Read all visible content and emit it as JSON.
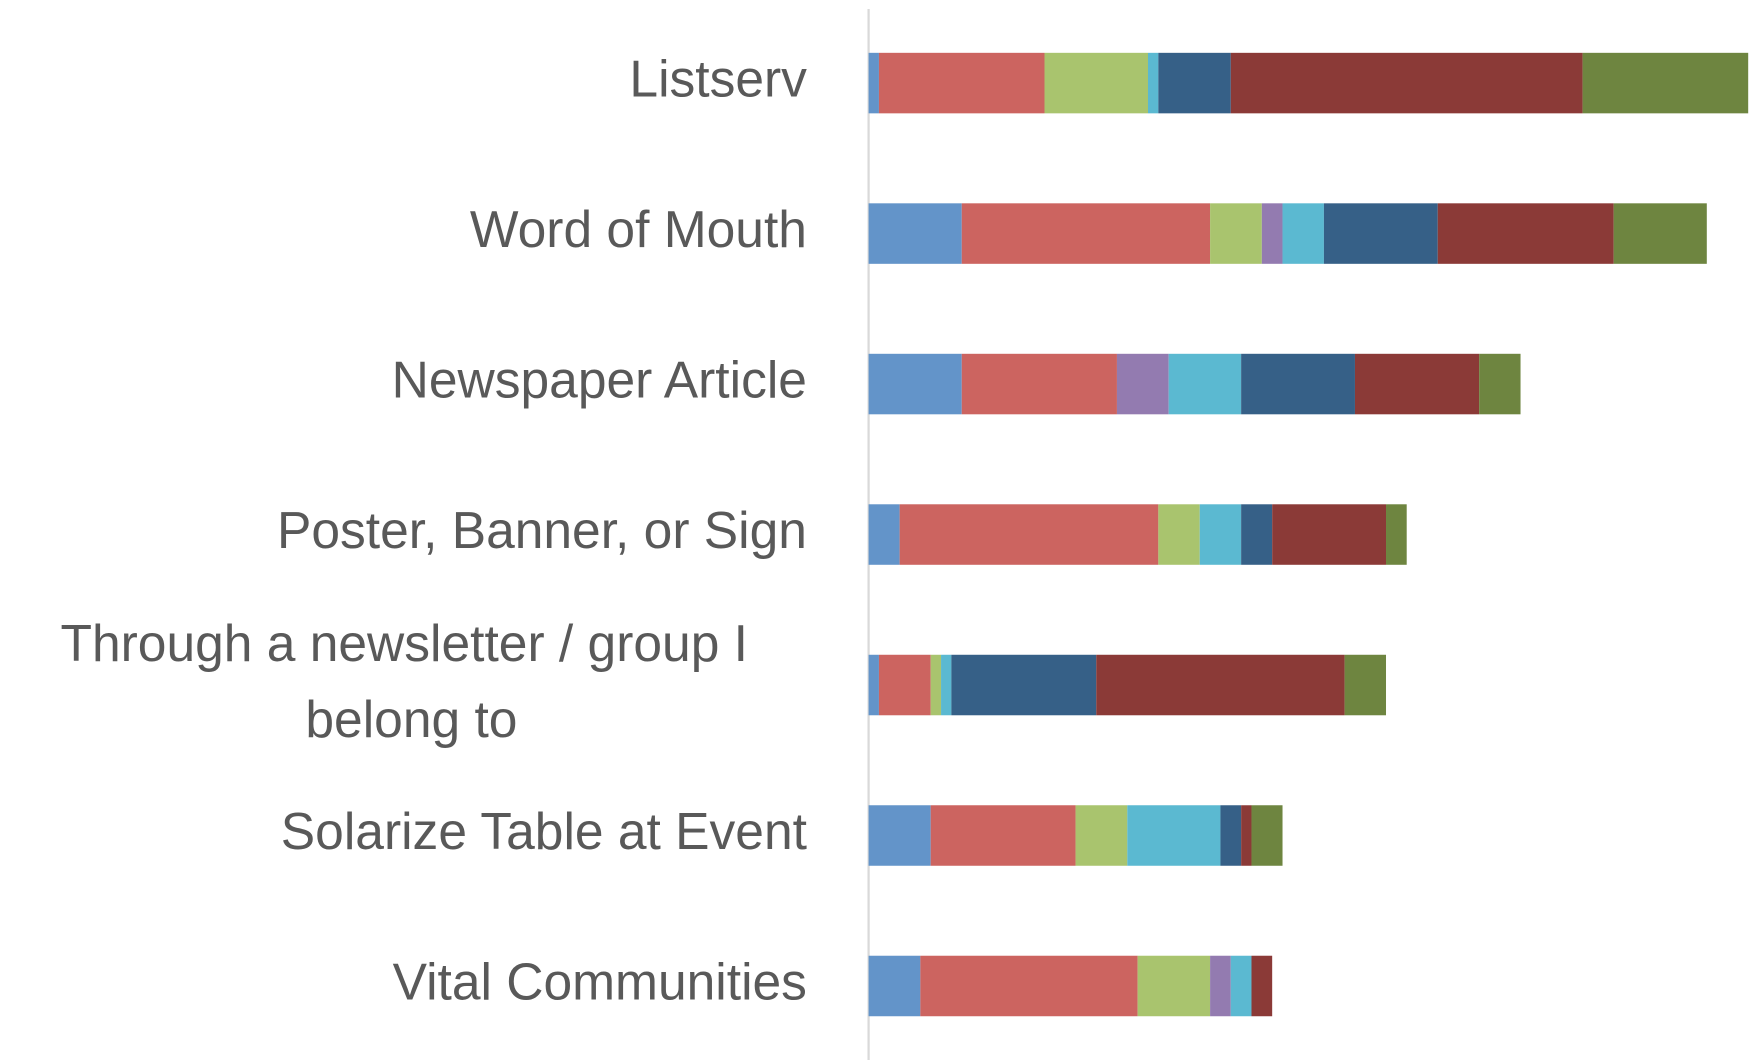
{
  "chart_data": {
    "type": "stacked-bar-horizontal",
    "categories": [
      "Listserv",
      "Word of Mouth",
      "Newspaper Article",
      "Poster, Banner, or Sign",
      "Through a newsletter / group I belong to",
      "Solarize Table at Event",
      "Vital Communities"
    ],
    "series": [
      {
        "color": "#6394c9",
        "values": [
          1,
          9,
          9,
          3,
          1,
          6,
          5
        ]
      },
      {
        "color": "#cc6460",
        "values": [
          16,
          24,
          15,
          25,
          5,
          14,
          21
        ]
      },
      {
        "color": "#a9c46e",
        "values": [
          10,
          5,
          0,
          4,
          1,
          5,
          7
        ]
      },
      {
        "color": "#937bb0",
        "values": [
          0,
          2,
          5,
          0,
          0,
          0,
          2
        ]
      },
      {
        "color": "#5bb9d1",
        "values": [
          1,
          4,
          7,
          4,
          1,
          9,
          2
        ]
      },
      {
        "color": "#366087",
        "values": [
          7,
          11,
          11,
          3,
          14,
          2,
          0
        ]
      },
      {
        "color": "#8b3a37",
        "values": [
          34,
          17,
          12,
          11,
          24,
          1,
          2
        ]
      },
      {
        "color": "#6e8540",
        "values": [
          16,
          9,
          4,
          2,
          4,
          3,
          0
        ]
      }
    ],
    "xlim": [
      0,
      85
    ]
  }
}
